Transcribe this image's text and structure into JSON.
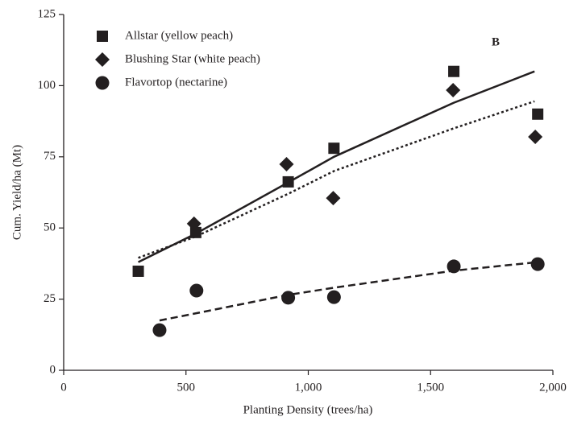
{
  "chart_data": {
    "type": "scatter",
    "annotation": "B",
    "x_label": "Planting Density (trees/ha)",
    "y_label": "Cum. Yield/ha (Mt)",
    "xlim": [
      0,
      2000
    ],
    "xticks": [
      0,
      500,
      {
        "value": 1000,
        "label": "1,000"
      },
      {
        "value": 1500,
        "label": "1,500"
      },
      {
        "value": 2000,
        "label": "2,000"
      }
    ],
    "ylim": [
      0,
      125
    ],
    "yticks": [
      0,
      25,
      50,
      75,
      100,
      125
    ],
    "legend": "upper left",
    "series": [
      {
        "name": "Allstar (yellow peach)",
        "marker": "square",
        "color": "#231f20",
        "x": [
          305,
          540,
          918,
          1105,
          1595,
          1938
        ],
        "values": [
          34.8,
          48.4,
          66.2,
          78,
          105,
          90
        ]
      },
      {
        "name": "Blushing Star (white peach)",
        "marker": "diamond",
        "color": "#231f20",
        "x": [
          533,
          911,
          1102,
          1592,
          1928
        ],
        "values": [
          51.5,
          72.4,
          60.5,
          98.4,
          82
        ]
      },
      {
        "name": "Flavortop (nectarine)",
        "marker": "circle",
        "color": "#231f20",
        "x": [
          392,
          543,
          918,
          1105,
          1595,
          1938
        ],
        "values": [
          14.1,
          28,
          25.5,
          25.7,
          36.5,
          37.3
        ]
      }
    ],
    "fits": [
      {
        "dash": "solid",
        "color": "#231f20",
        "x": [
          305,
          540,
          918,
          1105,
          1595,
          1925
        ],
        "values": [
          38,
          48,
          66,
          75,
          94,
          105
        ]
      },
      {
        "dash": "dotted",
        "color": "#231f20",
        "x": [
          305,
          540,
          918,
          1105,
          1595,
          1925
        ],
        "values": [
          39.5,
          47,
          62,
          70,
          85,
          94.5
        ]
      },
      {
        "dash": "dashed",
        "color": "#231f20",
        "x": [
          392,
          540,
          918,
          1105,
          1595,
          1938
        ],
        "values": [
          17.5,
          20,
          26.5,
          29,
          35,
          38
        ]
      }
    ]
  }
}
